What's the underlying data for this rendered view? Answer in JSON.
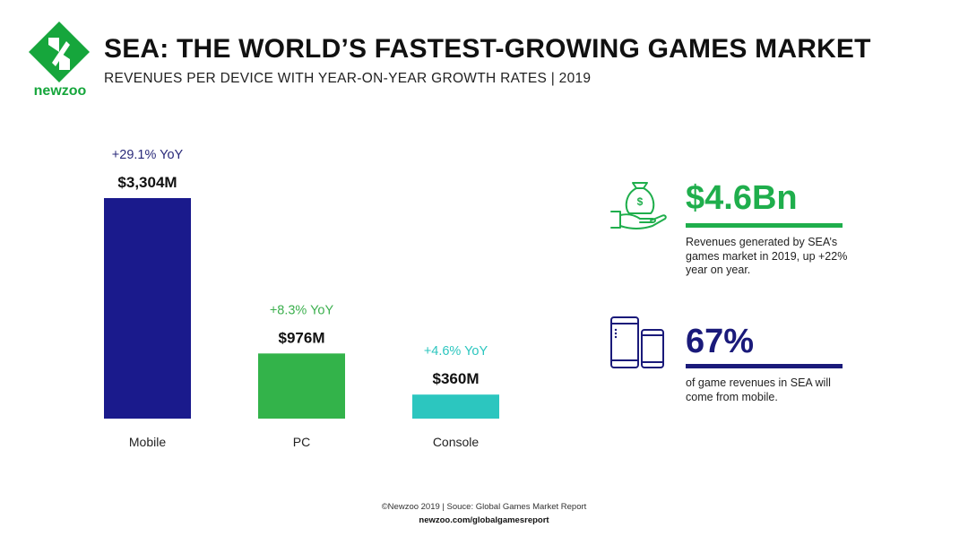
{
  "brand": {
    "name": "newzoo",
    "color": "#16a63c"
  },
  "header": {
    "title": "SEA: THE WORLD’S FASTEST-GROWING GAMES MARKET",
    "subtitle": "REVENUES PER DEVICE WITH YEAR-ON-YEAR GROWTH RATES | 2019"
  },
  "chart_data": {
    "type": "bar",
    "categories": [
      "Mobile",
      "PC",
      "Console"
    ],
    "values": [
      3304,
      976,
      360
    ],
    "value_labels": [
      "$3,304M",
      "$976M",
      "$360M"
    ],
    "growth_labels": [
      "+29.1% YoY",
      "+8.3% YoY",
      "+4.6% YoY"
    ],
    "colors": [
      "#1a1a8c",
      "#33b34a",
      "#2cc6bf"
    ],
    "growth_colors": [
      "#2a2a7a",
      "#3db04f",
      "#2cc6bf"
    ],
    "ylim": [
      0,
      3304
    ],
    "grid": false,
    "legend": "none"
  },
  "stats": [
    {
      "icon": "money-bag-hand-icon",
      "value": "$4.6Bn",
      "color": "#1fae4c",
      "description": "Revenues generated by SEA’s games market in 2019, up +22% year on year."
    },
    {
      "icon": "phone-tablet-icon",
      "value": "67%",
      "color": "#1a1a7a",
      "description": "of game revenues in SEA will come from mobile."
    }
  ],
  "footer": {
    "source": "©Newzoo 2019 | Souce: Global Games Market Report",
    "url": "newzoo.com/globalgamesreport"
  }
}
